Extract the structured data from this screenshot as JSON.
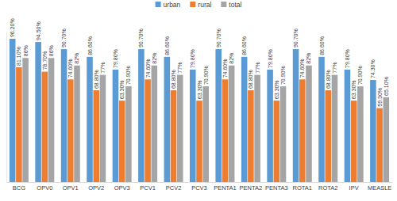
{
  "chart_data": {
    "type": "bar",
    "categories": [
      "BCG",
      "OPV0",
      "OPV1",
      "OPV2",
      "OPV3",
      "PCV1",
      "PCV2",
      "PCV3",
      "PENTA1",
      "PENTA2",
      "PENTA3",
      "ROTA1",
      "ROTA2",
      "IPV",
      "MEASLE"
    ],
    "series": [
      {
        "name": "urban",
        "color": "#5b9bd5",
        "values": [
          96.2,
          94.5,
          90.7,
          86.6,
          79.8,
          90.7,
          86.6,
          79.8,
          90.7,
          86.6,
          79.8,
          90.7,
          86.6,
          79.8,
          74.3
        ],
        "value_labels": [
          "96.20%",
          "94.50%",
          "90.70%",
          "86.60%",
          "79.80%",
          "90.70%",
          "86.60%",
          "79.80%",
          "90.70%",
          "86.60%",
          "79.80%",
          "90.70%",
          "86.60%",
          "79.80%",
          "74.30%"
        ]
      },
      {
        "name": "rural",
        "color": "#ed7d31",
        "values": [
          81.1,
          78.7,
          74.6,
          68.8,
          63.3,
          74.6,
          68.8,
          63.3,
          74.6,
          68.8,
          63.3,
          74.6,
          68.8,
          63.3,
          59.3
        ],
        "value_labels": [
          "81.10%",
          "78.70%",
          "74.60%",
          "68.80%",
          "63.30%",
          "74.60%",
          "68.80%",
          "63.30%",
          "74.60%",
          "68.80%",
          "63.30%",
          "74.60%",
          "68.80%",
          "63.30%",
          "59.30%"
        ]
      },
      {
        "name": "total",
        "color": "#a5a5a5",
        "values": [
          86,
          86,
          82,
          77,
          70.9,
          82,
          77,
          70.9,
          82,
          77,
          70.9,
          82,
          77,
          70.9,
          65.1
        ],
        "value_labels": [
          "86%",
          "86%",
          "82%",
          "77%",
          "70.90%",
          "82%",
          "77%",
          "70.90%",
          "82%",
          "77%",
          "70.90%",
          "82%",
          "77%",
          "70.90%",
          "65.10%"
        ]
      }
    ],
    "ylim": [
      20,
      100
    ],
    "yticks": [],
    "grid": false,
    "legend": "top",
    "data_labels": true,
    "tick_labels": "x"
  }
}
